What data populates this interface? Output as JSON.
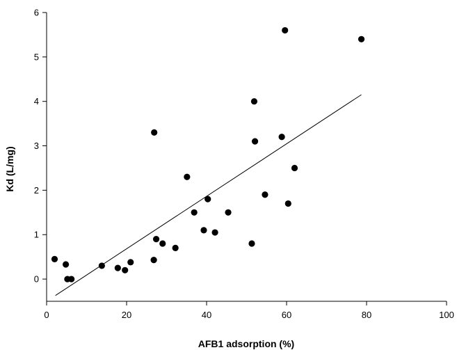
{
  "chart_data": {
    "type": "scatter",
    "xlabel": "AFB1 adsorption (%)",
    "ylabel": "Kd (L/mg)",
    "xlim": [
      0,
      100
    ],
    "ylim": [
      -0.5,
      6
    ],
    "x_ticks": [
      0,
      20,
      40,
      60,
      80,
      100
    ],
    "y_ticks": [
      0,
      1,
      2,
      3,
      4,
      5,
      6
    ],
    "grid": false,
    "points": [
      {
        "x": 2,
        "y": 0.45
      },
      {
        "x": 4.8,
        "y": 0.33
      },
      {
        "x": 5.2,
        "y": 0.0
      },
      {
        "x": 6.2,
        "y": 0.0
      },
      {
        "x": 13.8,
        "y": 0.3
      },
      {
        "x": 17.8,
        "y": 0.25
      },
      {
        "x": 19.6,
        "y": 0.2
      },
      {
        "x": 21,
        "y": 0.38
      },
      {
        "x": 26.8,
        "y": 0.43
      },
      {
        "x": 27.4,
        "y": 0.9
      },
      {
        "x": 29,
        "y": 0.8
      },
      {
        "x": 32.2,
        "y": 0.7
      },
      {
        "x": 26.9,
        "y": 3.3
      },
      {
        "x": 35.1,
        "y": 2.3
      },
      {
        "x": 36.9,
        "y": 1.5
      },
      {
        "x": 39.3,
        "y": 1.1
      },
      {
        "x": 40.3,
        "y": 1.8
      },
      {
        "x": 42.1,
        "y": 1.05
      },
      {
        "x": 45.4,
        "y": 1.5
      },
      {
        "x": 51.3,
        "y": 0.8
      },
      {
        "x": 51.9,
        "y": 4.0
      },
      {
        "x": 52.1,
        "y": 3.1
      },
      {
        "x": 54.6,
        "y": 1.9
      },
      {
        "x": 58.8,
        "y": 3.2
      },
      {
        "x": 59.6,
        "y": 5.6
      },
      {
        "x": 60.4,
        "y": 1.7
      },
      {
        "x": 62,
        "y": 2.5
      },
      {
        "x": 78.7,
        "y": 5.4
      }
    ],
    "fit_line": {
      "x": [
        2.2,
        78.7
      ],
      "y": [
        -0.37,
        4.15
      ]
    }
  }
}
